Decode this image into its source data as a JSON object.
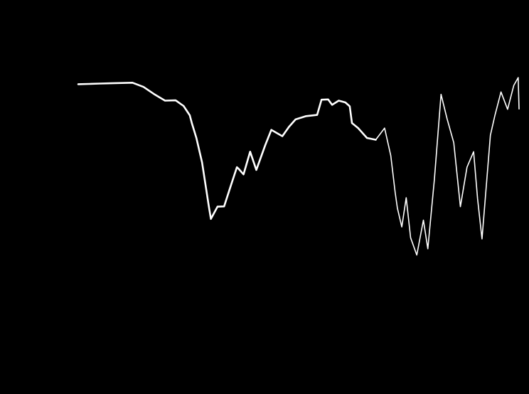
{
  "chart_data": {
    "type": "line",
    "xlim": [
      0,
      100
    ],
    "ylim": [
      0,
      100
    ],
    "colors": {
      "background": "#000000",
      "line": "#ffffff"
    },
    "grid": false,
    "legend": "none",
    "series": [
      {
        "values_x": [
          0,
          2.5,
          4.9,
          7.4,
          9.9,
          12.3,
          14.8,
          17.2,
          19.7,
          22.1,
          23.9,
          25.3,
          25.8,
          26.8,
          28.1,
          29.1,
          29.6,
          30.1,
          31.6,
          33.1,
          34.5,
          36.0,
          36.5,
          37.5,
          39.0,
          40.4,
          42.4,
          43.8,
          46.3,
          47.8,
          49.3,
          51.7,
          54.2,
          55.2,
          56.7,
          57.6,
          59.1,
          60.6,
          61.6,
          62.1,
          63.5,
          65.5,
          67.5
        ],
        "values_y": [
          86.1,
          86.2,
          86.3,
          86.4,
          86.5,
          86.6,
          85.2,
          82.8,
          80.6,
          80.7,
          78.8,
          75.7,
          72.9,
          68.1,
          59.9,
          50.3,
          45.5,
          41.0,
          45.1,
          45.2,
          51.6,
          58.3,
          57.6,
          55.9,
          63.5,
          57.4,
          65.6,
          70.8,
          68.7,
          71.8,
          74.3,
          75.4,
          75.8,
          80.9,
          81.0,
          79.2,
          80.6,
          80.0,
          78.7,
          73.1,
          71.4,
          68.1,
          67.5
        ]
      },
      {
        "values_x": [
          67.5,
          69.5,
          70.9,
          71.9,
          72.4,
          73.4,
          74.4,
          75.4,
          76.8,
          78.3,
          79.3,
          80.8,
          82.3,
          83.7,
          85.2,
          86.7,
          88.2,
          89.7,
          90.6,
          91.6,
          92.6,
          93.5,
          94.5,
          95.9,
          97.4,
          98.8,
          99.8,
          100
        ],
        "values_y": [
          67.5,
          71.4,
          62.2,
          49.8,
          44.6,
          38.3,
          48.1,
          34.7,
          28.9,
          40.6,
          31.0,
          54.4,
          82.7,
          74.4,
          66.5,
          45.1,
          58.3,
          63.5,
          47.7,
          34.3,
          52.5,
          69.0,
          75.5,
          83.5,
          77.7,
          85.7,
          88.3,
          77.8
        ]
      }
    ]
  }
}
